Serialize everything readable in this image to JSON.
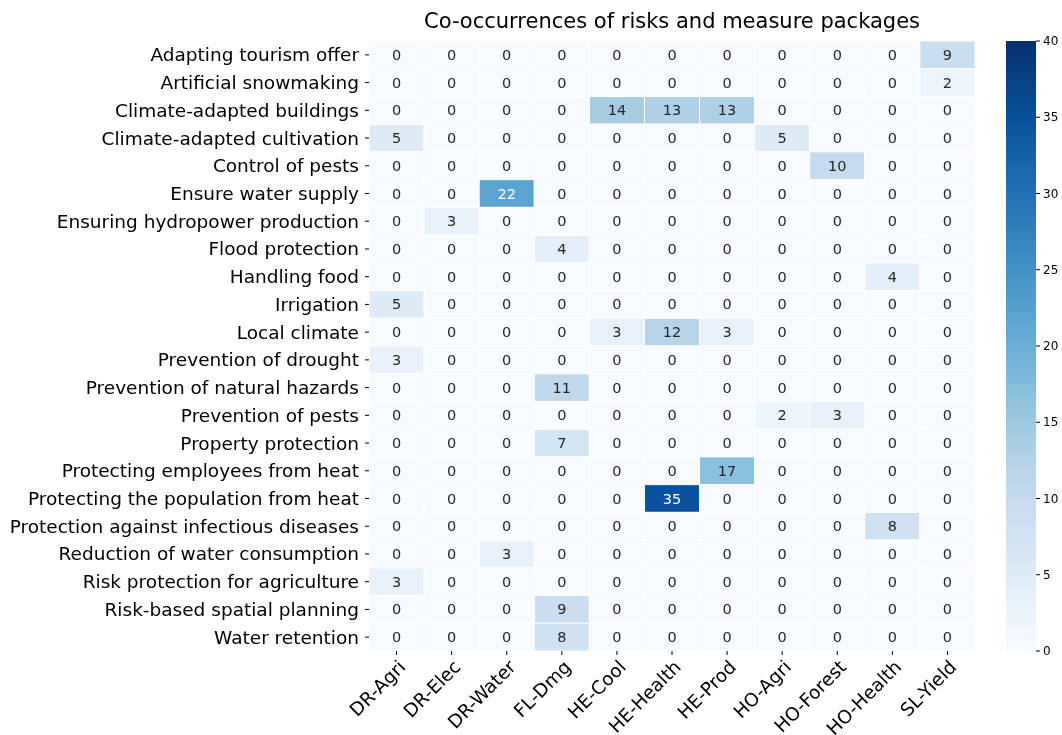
{
  "chart_data": {
    "type": "heatmap",
    "title": "Co-occurrences of risks and measure packages",
    "categories": [
      "DR-Agri",
      "DR-Elec",
      "DR-Water",
      "FL-Dmg",
      "HE-Cool",
      "HE-Health",
      "HE-Prod",
      "HO-Agri",
      "HO-Forest",
      "HO-Health",
      "SL-Yield"
    ],
    "y_categories": [
      "Adapting tourism offer",
      "Artificial snowmaking",
      "Climate-adapted buildings",
      "Climate-adapted cultivation",
      "Control of pests",
      "Ensure water supply",
      "Ensuring hydropower production",
      "Flood protection",
      "Handling food",
      "Irrigation",
      "Local climate",
      "Prevention of drought",
      "Prevention of natural hazards",
      "Prevention of pests",
      "Property protection",
      "Protecting employees from heat",
      "Protecting the population from heat",
      "Protection against infectious diseases",
      "Reduction of water consumption",
      "Risk protection for agriculture",
      "Risk-based spatial planning",
      "Water retention"
    ],
    "cells": [
      [
        0,
        0,
        0,
        0,
        0,
        0,
        0,
        0,
        0,
        0,
        9
      ],
      [
        0,
        0,
        0,
        0,
        0,
        0,
        0,
        0,
        0,
        0,
        2
      ],
      [
        0,
        0,
        0,
        0,
        14,
        13,
        13,
        0,
        0,
        0,
        0
      ],
      [
        5,
        0,
        0,
        0,
        0,
        0,
        0,
        5,
        0,
        0,
        0
      ],
      [
        0,
        0,
        0,
        0,
        0,
        0,
        0,
        0,
        10,
        0,
        0
      ],
      [
        0,
        0,
        22,
        0,
        0,
        0,
        0,
        0,
        0,
        0,
        0
      ],
      [
        0,
        3,
        0,
        0,
        0,
        0,
        0,
        0,
        0,
        0,
        0
      ],
      [
        0,
        0,
        0,
        4,
        0,
        0,
        0,
        0,
        0,
        0,
        0
      ],
      [
        0,
        0,
        0,
        0,
        0,
        0,
        0,
        0,
        0,
        4,
        0
      ],
      [
        5,
        0,
        0,
        0,
        0,
        0,
        0,
        0,
        0,
        0,
        0
      ],
      [
        0,
        0,
        0,
        0,
        3,
        12,
        3,
        0,
        0,
        0,
        0
      ],
      [
        3,
        0,
        0,
        0,
        0,
        0,
        0,
        0,
        0,
        0,
        0
      ],
      [
        0,
        0,
        0,
        11,
        0,
        0,
        0,
        0,
        0,
        0,
        0
      ],
      [
        0,
        0,
        0,
        0,
        0,
        0,
        0,
        2,
        3,
        0,
        0
      ],
      [
        0,
        0,
        0,
        7,
        0,
        0,
        0,
        0,
        0,
        0,
        0
      ],
      [
        0,
        0,
        0,
        0,
        0,
        0,
        17,
        0,
        0,
        0,
        0
      ],
      [
        0,
        0,
        0,
        0,
        0,
        35,
        0,
        0,
        0,
        0,
        0
      ],
      [
        0,
        0,
        0,
        0,
        0,
        0,
        0,
        0,
        0,
        8,
        0
      ],
      [
        0,
        0,
        3,
        0,
        0,
        0,
        0,
        0,
        0,
        0,
        0
      ],
      [
        3,
        0,
        0,
        0,
        0,
        0,
        0,
        0,
        0,
        0,
        0
      ],
      [
        0,
        0,
        0,
        9,
        0,
        0,
        0,
        0,
        0,
        0,
        0
      ],
      [
        0,
        0,
        0,
        8,
        0,
        0,
        0,
        0,
        0,
        0,
        0
      ]
    ],
    "clim": [
      0,
      40
    ],
    "cticks": [
      0,
      5,
      10,
      15,
      20,
      25,
      30,
      35,
      40
    ],
    "data_labels": true
  }
}
